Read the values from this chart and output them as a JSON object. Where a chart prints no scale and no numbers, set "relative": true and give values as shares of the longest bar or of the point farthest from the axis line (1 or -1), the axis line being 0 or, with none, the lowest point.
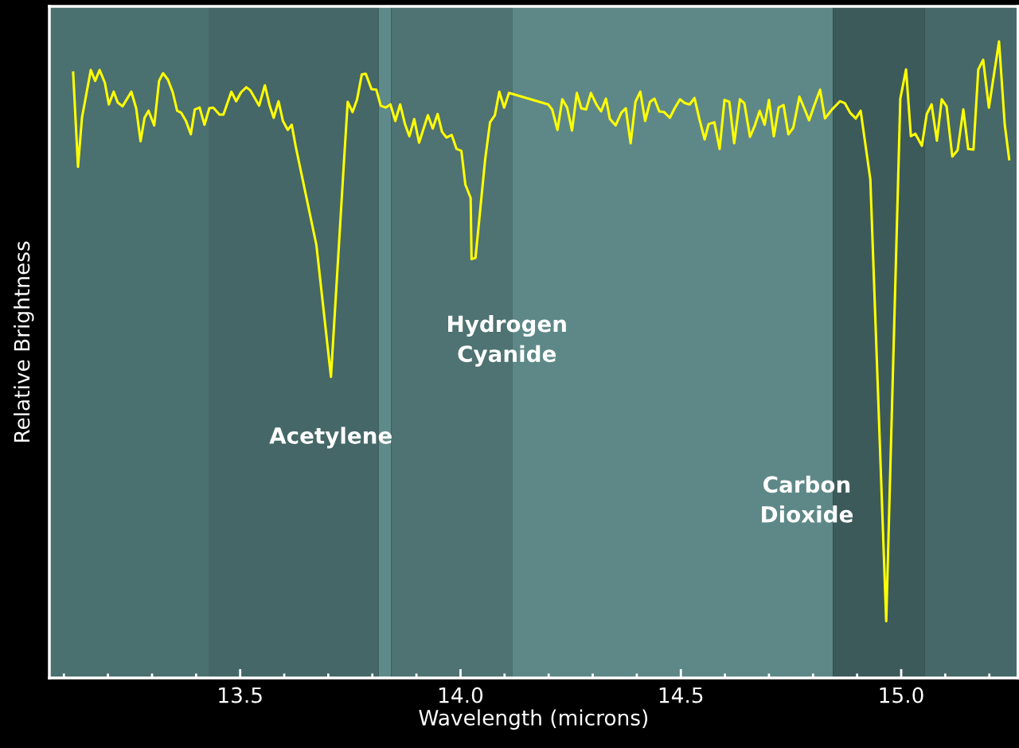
{
  "chart_data": {
    "type": "line",
    "relative": true,
    "xlabel": "Wavelength (microns)",
    "ylabel": "Relative Brightness",
    "xlim": [
      13.067,
      15.265
    ],
    "xticks": [
      {
        "value": 13.1,
        "label": null
      },
      {
        "value": 13.2,
        "label": null
      },
      {
        "value": 13.3,
        "label": null
      },
      {
        "value": 13.4,
        "label": null
      },
      13.5,
      {
        "value": 13.6,
        "label": null
      },
      {
        "value": 13.7,
        "label": null
      },
      {
        "value": 13.8,
        "label": null
      },
      {
        "value": 13.9,
        "label": null
      },
      {
        "value": 14.0,
        "label": "14.0"
      },
      {
        "value": 14.1,
        "label": null
      },
      {
        "value": 14.2,
        "label": null
      },
      {
        "value": 14.3,
        "label": null
      },
      {
        "value": 14.4,
        "label": null
      },
      14.5,
      {
        "value": 14.6,
        "label": null
      },
      {
        "value": 14.7,
        "label": null
      },
      {
        "value": 14.8,
        "label": null
      },
      {
        "value": 14.9,
        "label": null
      },
      {
        "value": 15.0,
        "label": "15.0"
      },
      {
        "value": 15.1,
        "label": null
      },
      {
        "value": 15.2,
        "label": null
      }
    ],
    "tick_labels": "x",
    "grid": false,
    "marker": "none",
    "line_style": "solid",
    "bands": [
      {
        "axis": "x",
        "from": 13.067,
        "to": 13.43,
        "color": "#4b7070"
      },
      {
        "axis": "x",
        "from": 13.43,
        "to": 13.814,
        "color": "#456767"
      },
      {
        "axis": "x",
        "from": 13.814,
        "to": 13.843,
        "color": "#5f8a8a"
      },
      {
        "axis": "x",
        "from": 13.843,
        "to": 14.117,
        "color": "#4f7272"
      },
      {
        "axis": "x",
        "from": 14.117,
        "to": 14.845,
        "color": "#5e8888"
      },
      {
        "axis": "x",
        "from": 14.845,
        "to": 15.054,
        "color": "#3d5a5a"
      },
      {
        "axis": "x",
        "from": 15.054,
        "to": 15.265,
        "color": "#466868"
      }
    ],
    "annotations": [
      {
        "text": "Acetylene",
        "x": 13.706,
        "y": 0.473
      },
      {
        "text": "Hydrogen\nCyanide",
        "x": 14.025,
        "y": 0.658
      },
      "Carbon\nDioxide"
    ],
    "series": [
      {
        "color": "#ffff00",
        "x": [
          13.121,
          13.132,
          13.141,
          13.161,
          13.171,
          13.181,
          13.193,
          13.202,
          13.213,
          13.222,
          13.233,
          13.253,
          13.264,
          13.274,
          13.283,
          13.292,
          13.305,
          13.316,
          13.325,
          13.336,
          13.347,
          13.357,
          13.366,
          13.377,
          13.388,
          13.397,
          13.408,
          13.419,
          13.43,
          13.439,
          13.453,
          13.462,
          13.48,
          13.491,
          13.502,
          13.514,
          13.523,
          13.543,
          13.556,
          13.567,
          13.576,
          13.587,
          13.597,
          13.608,
          13.617,
          13.626,
          13.673,
          13.706,
          13.735,
          13.744,
          13.755,
          13.765,
          13.776,
          13.785,
          13.798,
          13.809,
          13.819,
          13.83,
          13.841,
          13.852,
          13.863,
          13.874,
          13.884,
          13.895,
          13.906,
          13.926,
          13.937,
          13.948,
          13.958,
          13.968,
          13.98,
          13.991,
          14.002,
          14.011,
          14.023,
          14.025,
          14.034,
          14.056,
          14.067,
          14.078,
          14.088,
          14.099,
          14.11,
          14.199,
          14.208,
          14.22,
          14.231,
          14.242,
          14.253,
          14.264,
          14.274,
          14.285,
          14.296,
          14.309,
          14.319,
          14.33,
          14.339,
          14.352,
          14.365,
          14.375,
          14.386,
          14.397,
          14.408,
          14.419,
          14.43,
          14.44,
          14.451,
          14.462,
          14.475,
          14.486,
          14.498,
          14.509,
          14.52,
          14.531,
          14.542,
          14.554,
          14.563,
          14.576,
          14.588,
          14.599,
          14.61,
          14.621,
          14.634,
          14.644,
          14.657,
          14.668,
          14.679,
          14.69,
          14.7,
          14.711,
          14.722,
          14.733,
          14.744,
          14.755,
          14.769,
          14.78,
          14.791,
          14.803,
          14.816,
          14.827,
          14.843,
          14.861,
          14.872,
          14.884,
          14.897,
          14.908,
          14.93,
          14.966,
          14.998,
          15.011,
          15.022,
          15.032,
          15.047,
          15.058,
          15.069,
          15.081,
          15.092,
          15.103,
          15.116,
          15.128,
          15.141,
          15.152,
          15.164,
          15.175,
          15.186,
          15.199,
          15.222,
          15.235,
          15.245
        ],
        "values": [
          0.951,
          0.803,
          0.88,
          0.955,
          0.938,
          0.955,
          0.935,
          0.901,
          0.921,
          0.904,
          0.898,
          0.921,
          0.895,
          0.843,
          0.88,
          0.891,
          0.868,
          0.938,
          0.95,
          0.94,
          0.92,
          0.891,
          0.888,
          0.875,
          0.854,
          0.893,
          0.896,
          0.869,
          0.895,
          0.896,
          0.885,
          0.885,
          0.921,
          0.906,
          0.92,
          0.928,
          0.923,
          0.899,
          0.931,
          0.899,
          0.88,
          0.906,
          0.875,
          0.861,
          0.869,
          0.835,
          0.68,
          0.473,
          0.805,
          0.905,
          0.889,
          0.908,
          0.948,
          0.949,
          0.925,
          0.924,
          0.899,
          0.896,
          0.901,
          0.875,
          0.901,
          0.87,
          0.851,
          0.878,
          0.841,
          0.884,
          0.863,
          0.886,
          0.858,
          0.849,
          0.853,
          0.831,
          0.828,
          0.775,
          0.754,
          0.658,
          0.66,
          0.815,
          0.873,
          0.884,
          0.921,
          0.896,
          0.919,
          0.901,
          0.893,
          0.861,
          0.909,
          0.896,
          0.86,
          0.919,
          0.895,
          0.893,
          0.919,
          0.9,
          0.89,
          0.91,
          0.878,
          0.868,
          0.888,
          0.895,
          0.84,
          0.905,
          0.921,
          0.875,
          0.905,
          0.91,
          0.89,
          0.889,
          0.88,
          0.895,
          0.909,
          0.903,
          0.901,
          0.911,
          0.878,
          0.846,
          0.87,
          0.873,
          0.831,
          0.908,
          0.905,
          0.84,
          0.909,
          0.903,
          0.85,
          0.868,
          0.891,
          0.869,
          0.908,
          0.851,
          0.896,
          0.9,
          0.854,
          0.864,
          0.913,
          0.895,
          0.876,
          0.9,
          0.924,
          0.879,
          0.893,
          0.906,
          0.903,
          0.888,
          0.879,
          0.891,
          0.783,
          0.089,
          0.91,
          0.956,
          0.851,
          0.855,
          0.836,
          0.886,
          0.901,
          0.844,
          0.909,
          0.898,
          0.819,
          0.829,
          0.893,
          0.831,
          0.83,
          0.956,
          0.971,
          0.896,
          1,
          0.869,
          0.815
        ]
      }
    ]
  }
}
